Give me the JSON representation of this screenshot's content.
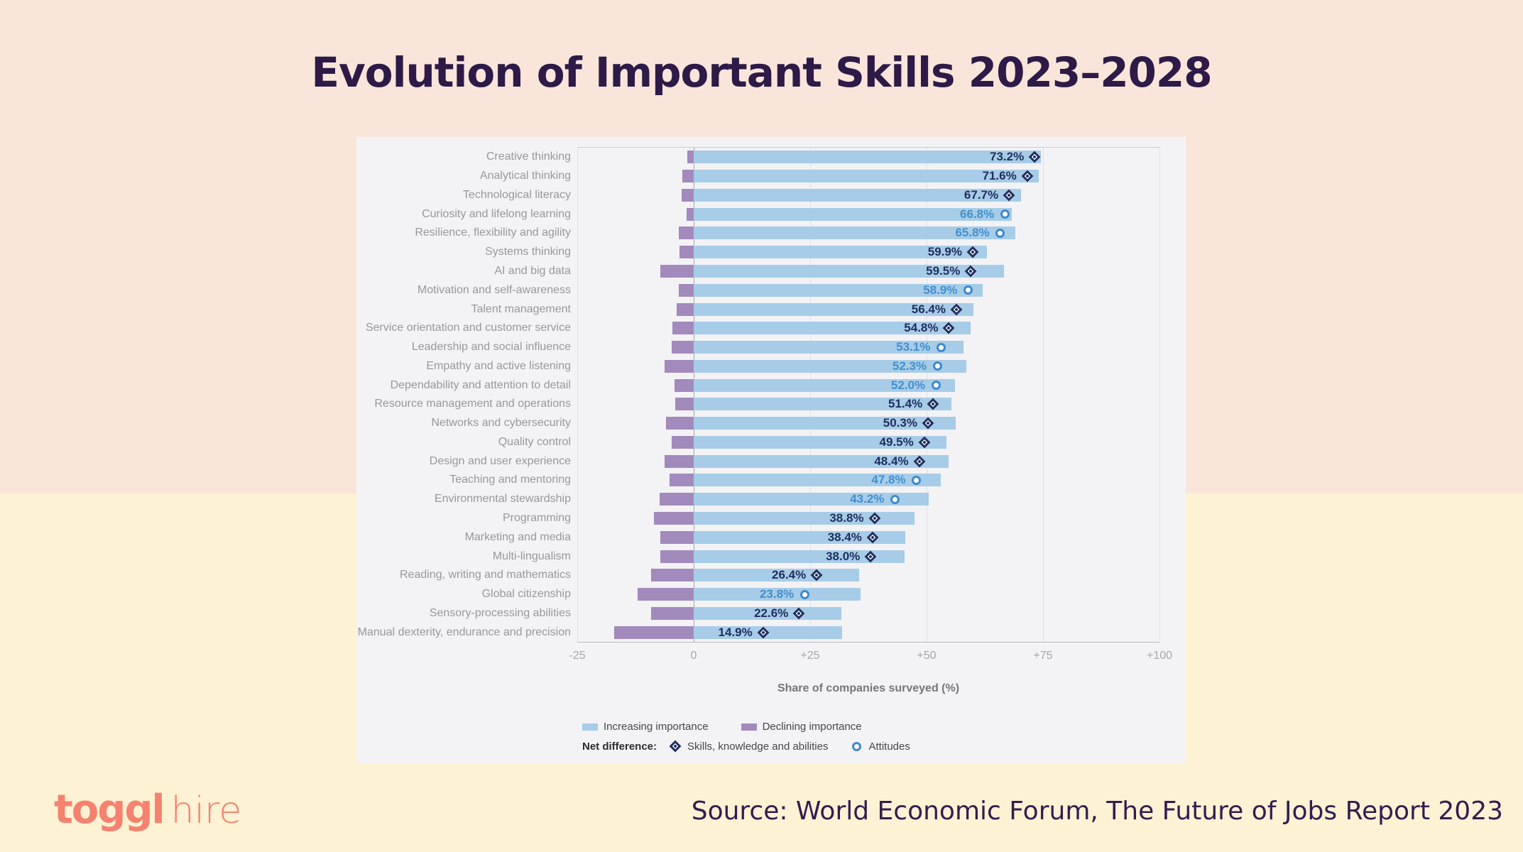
{
  "page": {
    "title": "Evolution of Important Skills 2023–2028",
    "source": "Source: World Economic Forum, The Future of Jobs Report 2023",
    "logo": {
      "primary": "toggl",
      "secondary": "hire"
    }
  },
  "colors": {
    "background_top": "#fae5db",
    "background_bottom": "#fdf2d3",
    "panel": "#f3f2f5",
    "increasing_bar": "#a7cce7",
    "declining_bar": "#a28abc",
    "skills_marker": "#1f3060",
    "attitudes_marker": "#3d89cd",
    "title_text": "#2e1a47",
    "logo_text": "#f5826f"
  },
  "chart_data": {
    "type": "bar",
    "orientation": "horizontal",
    "xlabel": "Share of companies surveyed (%)",
    "xlim": [
      -25,
      100
    ],
    "x_ticks": [
      {
        "value": -25,
        "label": "-25"
      },
      {
        "value": 0,
        "label": "0"
      },
      {
        "value": 25,
        "label": "+25"
      },
      {
        "value": 50,
        "label": "+50"
      },
      {
        "value": 75,
        "label": "+75"
      },
      {
        "value": 100,
        "label": "+100"
      }
    ],
    "legend": {
      "increasing_label": "Increasing importance",
      "declining_label": "Declining importance",
      "net_difference_label": "Net difference:",
      "skills_label": "Skills, knowledge and abilities",
      "attitudes_label": "Attitudes"
    },
    "rows": [
      {
        "label": "Creative thinking",
        "net": 73.2,
        "net_label": "73.2%",
        "marker": "skills",
        "increasing": 74.6,
        "declining": 1.4
      },
      {
        "label": "Analytical thinking",
        "net": 71.6,
        "net_label": "71.6%",
        "marker": "skills",
        "increasing": 74.1,
        "declining": 2.5
      },
      {
        "label": "Technological literacy",
        "net": 67.7,
        "net_label": "67.7%",
        "marker": "skills",
        "increasing": 70.3,
        "declining": 2.6
      },
      {
        "label": "Curiosity and lifelong learning",
        "net": 66.8,
        "net_label": "66.8%",
        "marker": "attitudes",
        "increasing": 68.3,
        "declining": 1.5
      },
      {
        "label": "Resilience, flexibility and agility",
        "net": 65.8,
        "net_label": "65.8%",
        "marker": "attitudes",
        "increasing": 69.0,
        "declining": 3.2
      },
      {
        "label": "Systems thinking",
        "net": 59.9,
        "net_label": "59.9%",
        "marker": "skills",
        "increasing": 63.0,
        "declining": 3.1
      },
      {
        "label": "AI and big data",
        "net": 59.5,
        "net_label": "59.5%",
        "marker": "skills",
        "increasing": 66.6,
        "declining": 7.1
      },
      {
        "label": "Motivation and self-awareness",
        "net": 58.9,
        "net_label": "58.9%",
        "marker": "attitudes",
        "increasing": 62.1,
        "declining": 3.2
      },
      {
        "label": "Talent management",
        "net": 56.4,
        "net_label": "56.4%",
        "marker": "skills",
        "increasing": 60.0,
        "declining": 3.6
      },
      {
        "label": "Service orientation and customer service",
        "net": 54.8,
        "net_label": "54.8%",
        "marker": "skills",
        "increasing": 59.4,
        "declining": 4.6
      },
      {
        "label": "Leadership and social influence",
        "net": 53.1,
        "net_label": "53.1%",
        "marker": "attitudes",
        "increasing": 57.9,
        "declining": 4.8
      },
      {
        "label": "Empathy and active listening",
        "net": 52.3,
        "net_label": "52.3%",
        "marker": "attitudes",
        "increasing": 58.6,
        "declining": 6.3
      },
      {
        "label": "Dependability and attention to detail",
        "net": 52.0,
        "net_label": "52.0%",
        "marker": "attitudes",
        "increasing": 56.1,
        "declining": 4.1
      },
      {
        "label": "Resource management and operations",
        "net": 51.4,
        "net_label": "51.4%",
        "marker": "skills",
        "increasing": 55.3,
        "declining": 3.9
      },
      {
        "label": "Networks and cybersecurity",
        "net": 50.3,
        "net_label": "50.3%",
        "marker": "skills",
        "increasing": 56.3,
        "declining": 6.0
      },
      {
        "label": "Quality control",
        "net": 49.5,
        "net_label": "49.5%",
        "marker": "skills",
        "increasing": 54.2,
        "declining": 4.7
      },
      {
        "label": "Design and user experience",
        "net": 48.4,
        "net_label": "48.4%",
        "marker": "skills",
        "increasing": 54.7,
        "declining": 6.3
      },
      {
        "label": "Teaching and mentoring",
        "net": 47.8,
        "net_label": "47.8%",
        "marker": "attitudes",
        "increasing": 53.0,
        "declining": 5.2
      },
      {
        "label": "Environmental stewardship",
        "net": 43.2,
        "net_label": "43.2%",
        "marker": "attitudes",
        "increasing": 50.5,
        "declining": 7.3
      },
      {
        "label": "Programming",
        "net": 38.8,
        "net_label": "38.8%",
        "marker": "skills",
        "increasing": 47.4,
        "declining": 8.6
      },
      {
        "label": "Marketing and media",
        "net": 38.4,
        "net_label": "38.4%",
        "marker": "skills",
        "increasing": 45.5,
        "declining": 7.1
      },
      {
        "label": "Multi-lingualism",
        "net": 38.0,
        "net_label": "38.0%",
        "marker": "skills",
        "increasing": 45.2,
        "declining": 7.2
      },
      {
        "label": "Reading, writing and mathematics",
        "net": 26.4,
        "net_label": "26.4%",
        "marker": "skills",
        "increasing": 35.5,
        "declining": 9.1
      },
      {
        "label": "Global citizenship",
        "net": 23.8,
        "net_label": "23.8%",
        "marker": "attitudes",
        "increasing": 35.8,
        "declining": 12.0
      },
      {
        "label": "Sensory-processing abilities",
        "net": 22.6,
        "net_label": "22.6%",
        "marker": "skills",
        "increasing": 31.7,
        "declining": 9.1
      },
      {
        "label": "Manual dexterity, endurance and precision",
        "net": 14.9,
        "net_label": "14.9%",
        "marker": "skills",
        "increasing": 31.9,
        "declining": 17.0
      }
    ]
  }
}
